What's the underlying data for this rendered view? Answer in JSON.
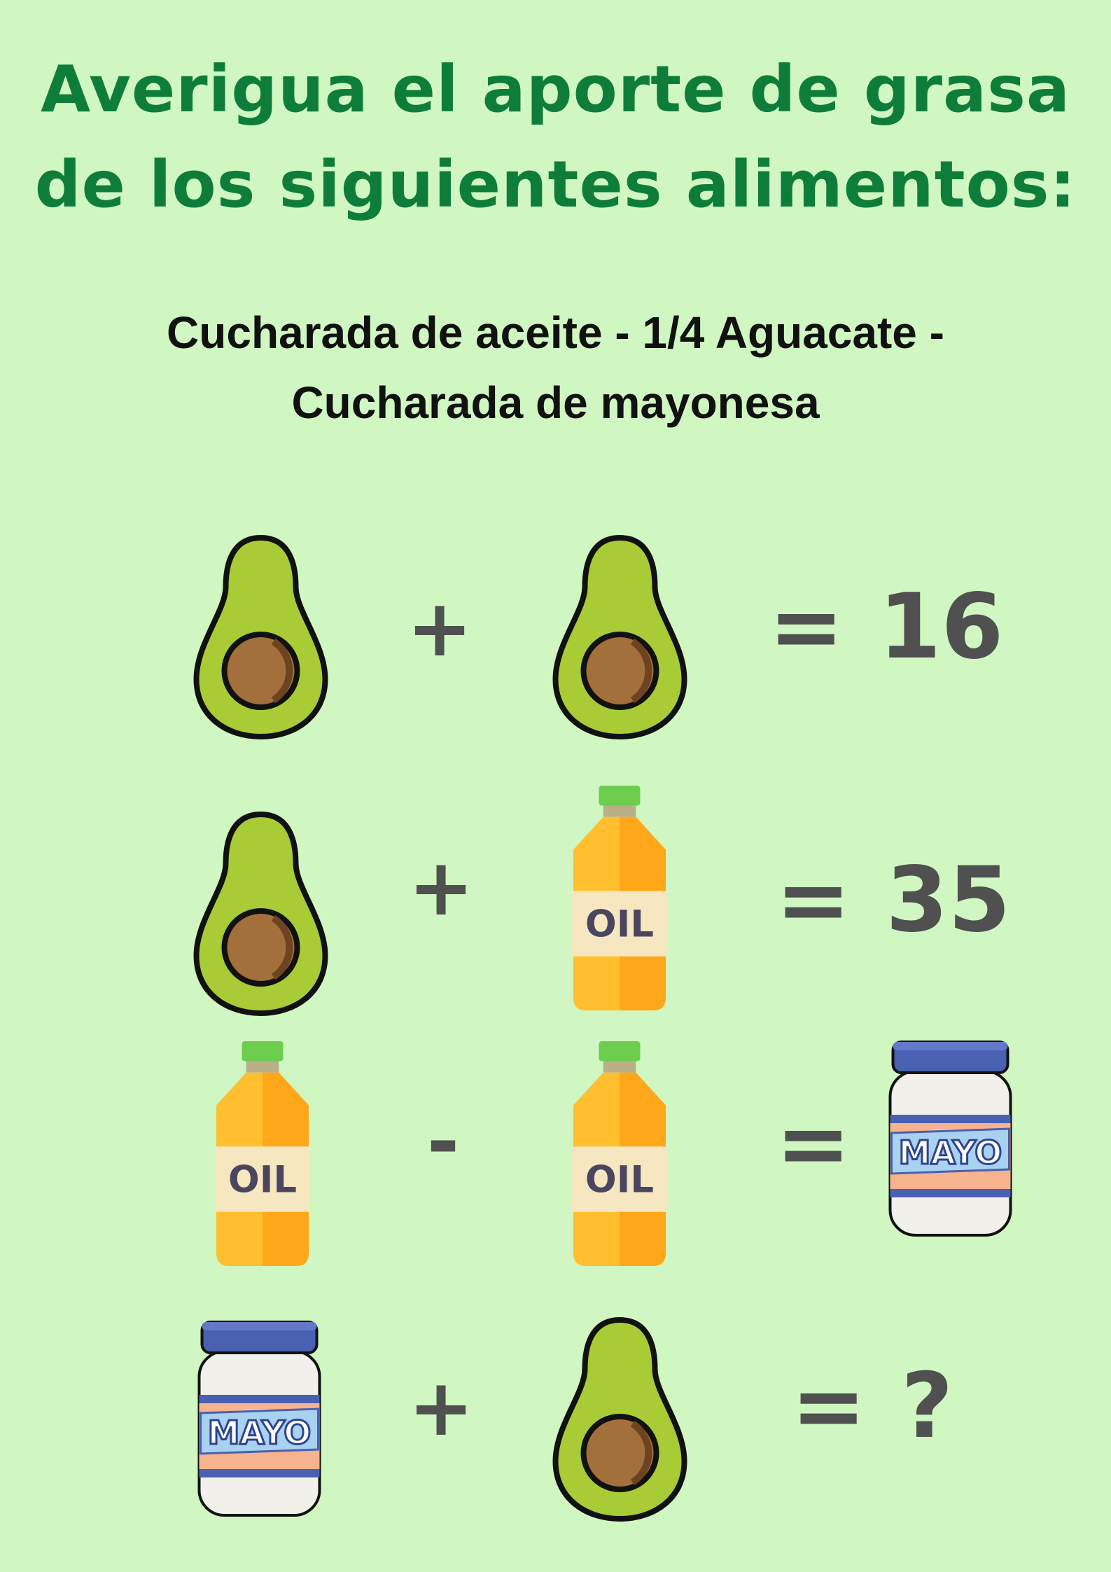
{
  "title": {
    "line1": "Averigua el aporte de grasa",
    "line2": "de los siguientes alimentos:"
  },
  "subtitle": {
    "line1": "Cucharada de aceite - 1/4 Aguacate -",
    "line2": "Cucharada de mayonesa"
  },
  "colors": {
    "background": "#d0f7c2",
    "title": "#0f7d3a",
    "operators": "#505050",
    "avocado_flesh": "#a9cc36",
    "avocado_seed": "#a36f3b",
    "oil_body": "#ffbf2e",
    "oil_cap": "#6ccd4f",
    "mayo_lid": "#4a60b0"
  },
  "icons": {
    "avocado": "avocado-icon",
    "oil": "oil-bottle-icon",
    "mayo": "mayo-jar-icon"
  },
  "labels": {
    "oil": "OIL",
    "mayo": "MAYO"
  },
  "equations": [
    {
      "left": "avocado",
      "operator": "+",
      "right": "avocado",
      "equals": "=",
      "result": "16"
    },
    {
      "left": "avocado",
      "operator": "+",
      "right": "oil",
      "equals": "=",
      "result": "35"
    },
    {
      "left": "oil",
      "operator": "-",
      "right": "oil",
      "equals": "=",
      "result": "mayo"
    },
    {
      "left": "mayo",
      "operator": "+",
      "right": "avocado",
      "equals": "=",
      "result": "?"
    }
  ]
}
